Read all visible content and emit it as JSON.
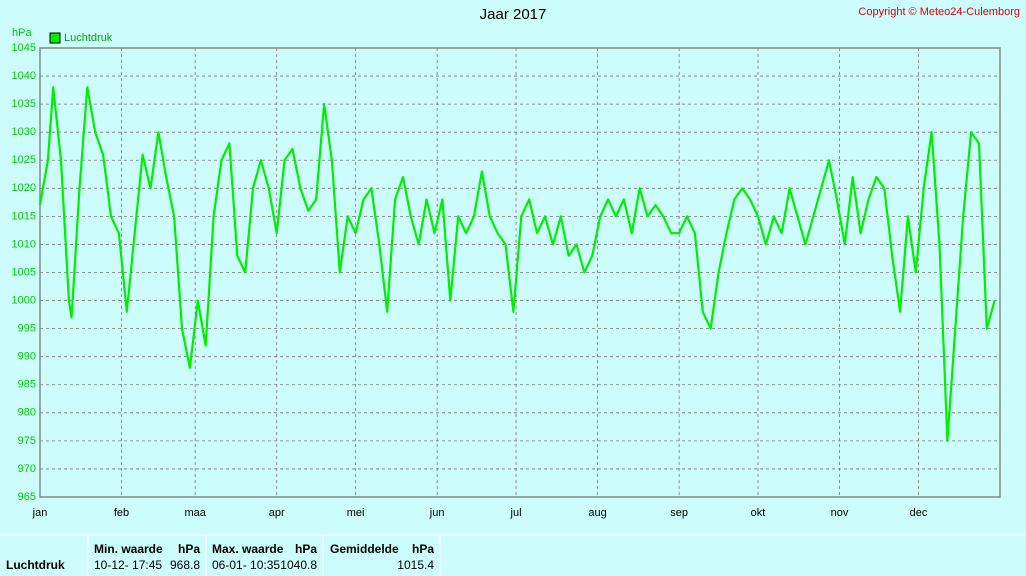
{
  "chart_data": {
    "type": "line",
    "title": "Jaar 2017",
    "copyright": "Copyright © Meteo24-Culemborg",
    "ylabel": "hPa",
    "xlim": [
      0,
      365
    ],
    "xticks": [
      {
        "value": 0,
        "label": "jan"
      },
      {
        "value": 31,
        "label": "feb"
      },
      {
        "value": 59,
        "label": "maa"
      },
      {
        "value": 90,
        "label": "apr"
      },
      {
        "value": 120,
        "label": "mei"
      },
      {
        "value": 151,
        "label": "jun"
      },
      {
        "value": 181,
        "label": "jul"
      },
      {
        "value": 212,
        "label": "aug"
      },
      {
        "value": 243,
        "label": "sep"
      },
      {
        "value": 273,
        "label": "okt"
      },
      {
        "value": 304,
        "label": "nov"
      },
      {
        "value": 334,
        "label": "dec"
      }
    ],
    "ylim": [
      965,
      1045
    ],
    "yticks": [
      965,
      970,
      975,
      980,
      985,
      990,
      995,
      1000,
      1005,
      1010,
      1015,
      1020,
      1025,
      1030,
      1035,
      1040,
      1045
    ],
    "grid": true,
    "legend": "top-left",
    "x": [
      0,
      3,
      5,
      8,
      11,
      12,
      15,
      18,
      21,
      24,
      27,
      30,
      33,
      36,
      39,
      42,
      45,
      48,
      51,
      54,
      57,
      60,
      63,
      66,
      69,
      72,
      75,
      78,
      81,
      84,
      87,
      90,
      93,
      96,
      99,
      102,
      105,
      108,
      111,
      114,
      117,
      120,
      123,
      126,
      129,
      132,
      135,
      138,
      141,
      144,
      147,
      150,
      153,
      156,
      159,
      162,
      165,
      168,
      171,
      174,
      177,
      180,
      183,
      186,
      189,
      192,
      195,
      198,
      201,
      204,
      207,
      210,
      213,
      216,
      219,
      222,
      225,
      228,
      231,
      234,
      237,
      240,
      243,
      246,
      249,
      252,
      255,
      258,
      261,
      264,
      267,
      270,
      273,
      276,
      279,
      282,
      285,
      288,
      291,
      294,
      297,
      300,
      303,
      306,
      309,
      312,
      315,
      318,
      321,
      324,
      327,
      330,
      333,
      336,
      339,
      342,
      345,
      348,
      351,
      354,
      357,
      360,
      363
    ],
    "series": [
      {
        "name": "Luchtdruk",
        "color": "#00ee00",
        "values": [
          1017,
          1025,
          1038,
          1025,
          1000,
          997,
          1020,
          1038,
          1030,
          1026,
          1015,
          1012,
          998,
          1012,
          1026,
          1020,
          1030,
          1022,
          1015,
          995,
          988,
          1000,
          992,
          1015,
          1025,
          1028,
          1008,
          1005,
          1020,
          1025,
          1020,
          1012,
          1025,
          1027,
          1020,
          1016,
          1018,
          1035,
          1025,
          1005,
          1015,
          1012,
          1018,
          1020,
          1010,
          998,
          1018,
          1022,
          1015,
          1010,
          1018,
          1012,
          1018,
          1000,
          1015,
          1012,
          1015,
          1023,
          1015,
          1012,
          1010,
          998,
          1015,
          1018,
          1012,
          1015,
          1010,
          1015,
          1008,
          1010,
          1005,
          1008,
          1015,
          1018,
          1015,
          1018,
          1012,
          1020,
          1015,
          1017,
          1015,
          1012,
          1012,
          1015,
          1012,
          998,
          995,
          1005,
          1012,
          1018,
          1020,
          1018,
          1015,
          1010,
          1015,
          1012,
          1020,
          1015,
          1010,
          1015,
          1020,
          1025,
          1018,
          1010,
          1022,
          1012,
          1018,
          1022,
          1020,
          1008,
          998,
          1015,
          1005,
          1020,
          1030,
          1010,
          975,
          995,
          1015,
          1030,
          1028,
          995,
          1000
        ]
      }
    ]
  },
  "table": {
    "row_label": "Luchtdruk",
    "columns": [
      {
        "header": "Min. waarde",
        "unit": "hPa",
        "time": "10-12- 17:45",
        "value": "968.8"
      },
      {
        "header": "Max. waarde",
        "unit": "hPa",
        "time": "06-01- 10:35",
        "value": "1040.8"
      },
      {
        "header": "Gemiddelde",
        "unit": "hPa",
        "value": "1015.4"
      }
    ]
  }
}
